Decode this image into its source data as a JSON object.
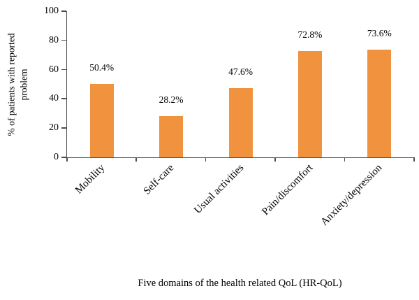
{
  "chart_data": {
    "type": "bar",
    "categories": [
      "Mobility",
      "Self-care",
      "Usual activities",
      "Pain/discomfort",
      "Anxiety/depression"
    ],
    "values": [
      50.4,
      28.2,
      47.6,
      72.8,
      73.6
    ],
    "value_labels": [
      "50.4%",
      "28.2%",
      "47.6%",
      "72.8%",
      "73.6%"
    ],
    "title": "",
    "xlabel": "Five domains of the health related QoL (HR-QoL)",
    "ylabel": "% of patients with reported problem",
    "ylim": [
      0,
      100
    ],
    "yticks": [
      0,
      20,
      40,
      60,
      80,
      100
    ],
    "grid": false,
    "legend_position": "none",
    "bar_color": "#F0923E",
    "axis_color": "#4d4d4d",
    "text_color": "#000000"
  }
}
